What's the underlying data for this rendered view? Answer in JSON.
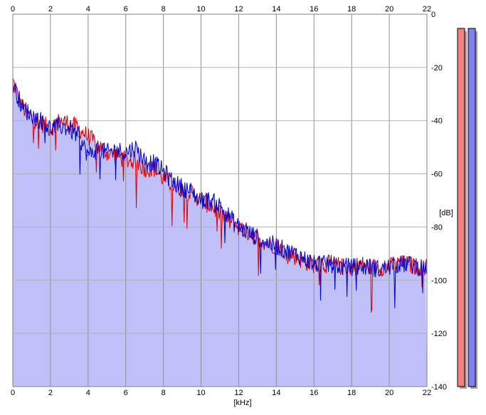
{
  "chart_data": {
    "type": "line",
    "title": "",
    "xlabel": "[kHz]",
    "ylabel": "[dB]",
    "xlim": [
      0,
      22
    ],
    "ylim": [
      -140,
      0
    ],
    "x_ticks": [
      "0",
      "2",
      "4",
      "6",
      "8",
      "10",
      "12",
      "14",
      "16",
      "18",
      "20",
      "22"
    ],
    "y_ticks": [
      "0",
      "-20",
      "-40",
      "-60",
      "-80",
      "-100",
      "-120",
      "-140"
    ],
    "grid": true,
    "fill_color": "#c0c0f8",
    "series": [
      {
        "color": "#dd0000",
        "x": [
          0,
          0.5,
          1,
          1.5,
          2,
          2.5,
          3,
          3.5,
          4,
          4.5,
          5,
          5.5,
          6,
          6.5,
          7,
          7.5,
          8,
          8.5,
          9,
          9.5,
          10,
          10.5,
          11,
          11.5,
          12,
          12.5,
          13,
          13.5,
          14,
          14.5,
          15,
          15.5,
          16,
          16.5,
          17,
          17.5,
          18,
          18.5,
          19,
          19.5,
          20,
          20.5,
          21,
          21.5,
          22
        ],
        "values": [
          -25,
          -35,
          -39,
          -41,
          -43,
          -40,
          -41,
          -43,
          -46,
          -49,
          -52,
          -53,
          -55,
          -55,
          -58,
          -58,
          -62,
          -64,
          -66,
          -67,
          -70,
          -72,
          -75,
          -78,
          -80,
          -82,
          -84,
          -86,
          -87,
          -89,
          -91,
          -93,
          -94,
          -94,
          -94,
          -95,
          -95,
          -94,
          -95,
          -95,
          -95,
          -94,
          -94,
          -95,
          -95
        ]
      },
      {
        "color": "#0000cc",
        "x": [
          0,
          0.5,
          1,
          1.5,
          2,
          2.5,
          3,
          3.5,
          4,
          4.5,
          5,
          5.5,
          6,
          6.5,
          7,
          7.5,
          8,
          8.5,
          9,
          9.5,
          10,
          10.5,
          11,
          11.5,
          12,
          12.5,
          13,
          13.5,
          14,
          14.5,
          15,
          15.5,
          16,
          16.5,
          17,
          17.5,
          18,
          18.5,
          19,
          19.5,
          20,
          20.5,
          21,
          21.5,
          22
        ],
        "values": [
          -26,
          -35,
          -38,
          -40,
          -43,
          -42,
          -43,
          -46,
          -53,
          -51,
          -52,
          -51,
          -52,
          -50,
          -55,
          -56,
          -59,
          -63,
          -65,
          -67,
          -70,
          -70,
          -72,
          -76,
          -80,
          -82,
          -84,
          -86,
          -87,
          -89,
          -90,
          -92,
          -94,
          -94,
          -94,
          -95,
          -95,
          -95,
          -95,
          -96,
          -95,
          -94,
          -94,
          -95,
          -95
        ]
      }
    ],
    "level_meters": [
      {
        "color": "#f48080"
      },
      {
        "color": "#8080f0"
      }
    ]
  }
}
